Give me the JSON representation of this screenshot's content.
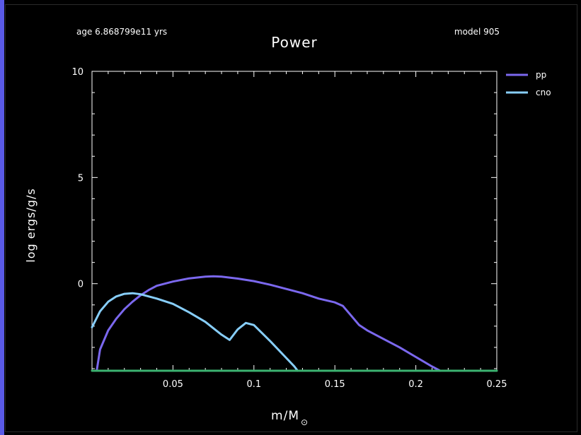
{
  "header": {
    "age_text": "age 6.868799e11 yrs",
    "model_text": "model 905"
  },
  "chart_data": {
    "type": "line",
    "title": "Power",
    "xlabel": "m/M",
    "xlabel_symbol": "⊙",
    "ylabel": "log ergs/g/s",
    "xlim": [
      0.0,
      0.25
    ],
    "ylim": [
      -4.1,
      10
    ],
    "x_ticks": [
      0.05,
      0.1,
      0.15,
      0.2,
      0.25
    ],
    "x_tick_labels": [
      "0.05",
      "0.1",
      "0.15",
      "0.2",
      "0.25"
    ],
    "y_ticks": [
      0,
      5,
      10
    ],
    "y_tick_labels": [
      "0",
      "5",
      "10"
    ],
    "grid": false,
    "legend_position": "top-right",
    "series": [
      {
        "name": "pp",
        "color": "#7b68ee",
        "x": [
          0.003,
          0.005,
          0.01,
          0.015,
          0.02,
          0.025,
          0.03,
          0.035,
          0.04,
          0.05,
          0.06,
          0.07,
          0.075,
          0.08,
          0.09,
          0.1,
          0.11,
          0.12,
          0.13,
          0.14,
          0.15,
          0.155,
          0.16,
          0.165,
          0.17,
          0.18,
          0.19,
          0.2,
          0.21,
          0.215
        ],
        "y": [
          -4.05,
          -3.1,
          -2.2,
          -1.65,
          -1.2,
          -0.85,
          -0.55,
          -0.3,
          -0.1,
          0.1,
          0.25,
          0.33,
          0.35,
          0.33,
          0.24,
          0.12,
          -0.05,
          -0.25,
          -0.45,
          -0.7,
          -0.88,
          -1.05,
          -1.5,
          -1.95,
          -2.2,
          -2.6,
          -3.0,
          -3.45,
          -3.9,
          -4.1
        ]
      },
      {
        "name": "cno",
        "color": "#87cefa",
        "x": [
          0.0,
          0.003,
          0.005,
          0.01,
          0.015,
          0.02,
          0.025,
          0.03,
          0.04,
          0.05,
          0.06,
          0.07,
          0.08,
          0.085,
          0.09,
          0.095,
          0.1,
          0.11,
          0.12,
          0.125,
          0.127
        ],
        "y": [
          -2.05,
          -1.6,
          -1.3,
          -0.85,
          -0.6,
          -0.48,
          -0.45,
          -0.5,
          -0.7,
          -0.95,
          -1.35,
          -1.8,
          -2.4,
          -2.65,
          -2.15,
          -1.85,
          -1.95,
          -2.7,
          -3.5,
          -3.9,
          -4.1
        ]
      },
      {
        "name": "",
        "color": "#3cb371",
        "x": [
          0.0,
          0.25
        ],
        "y": [
          -4.1,
          -4.1
        ]
      }
    ]
  }
}
